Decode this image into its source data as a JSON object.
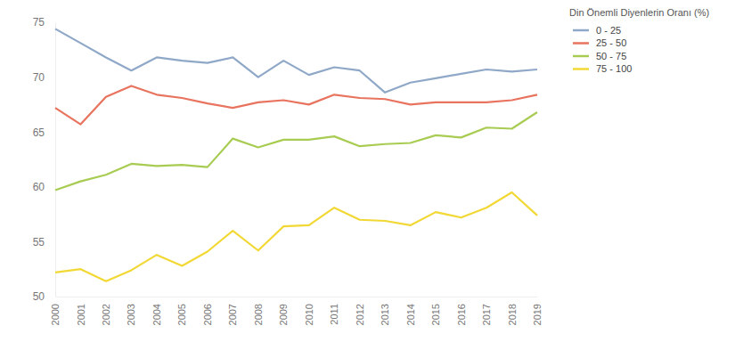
{
  "chart_data": {
    "type": "line",
    "legend_title": "Din Önemli Diyenlerin Oranı (%)",
    "legend": "right",
    "grid": false,
    "categories": [
      "2000",
      "2001",
      "2002",
      "2003",
      "2004",
      "2005",
      "2006",
      "2007",
      "2008",
      "2009",
      "2010",
      "2011",
      "2012",
      "2013",
      "2014",
      "2015",
      "2016",
      "2017",
      "2018",
      "2019"
    ],
    "ylim": [
      50,
      75
    ],
    "yticks": [
      50,
      55,
      60,
      65,
      70,
      75
    ],
    "series": [
      {
        "name": "0 - 25",
        "color": "#8fa8c8",
        "values": [
          74.4,
          73.1,
          71.8,
          70.6,
          71.8,
          71.5,
          71.3,
          71.8,
          70.0,
          71.5,
          70.2,
          70.9,
          70.6,
          68.6,
          69.5,
          69.9,
          70.3,
          70.7,
          70.5,
          70.7
        ]
      },
      {
        "name": "25 - 50",
        "color": "#e8735e",
        "values": [
          67.2,
          65.7,
          68.2,
          69.2,
          68.4,
          68.1,
          67.6,
          67.2,
          67.7,
          67.9,
          67.5,
          68.4,
          68.1,
          68.0,
          67.5,
          67.7,
          67.7,
          67.7,
          67.9,
          68.4
        ]
      },
      {
        "name": "50 - 75",
        "color": "#a8cc52",
        "values": [
          59.7,
          60.5,
          61.1,
          62.1,
          61.9,
          62.0,
          61.8,
          64.4,
          63.6,
          64.3,
          64.3,
          64.6,
          63.7,
          63.9,
          64.0,
          64.7,
          64.5,
          65.4,
          65.3,
          66.8
        ]
      },
      {
        "name": "75 - 100",
        "color": "#f2d835",
        "values": [
          52.2,
          52.5,
          51.4,
          52.4,
          53.8,
          52.8,
          54.1,
          56.0,
          54.2,
          56.4,
          56.5,
          58.1,
          57.0,
          56.9,
          56.5,
          57.7,
          57.2,
          58.1,
          59.5,
          57.4
        ]
      }
    ]
  }
}
